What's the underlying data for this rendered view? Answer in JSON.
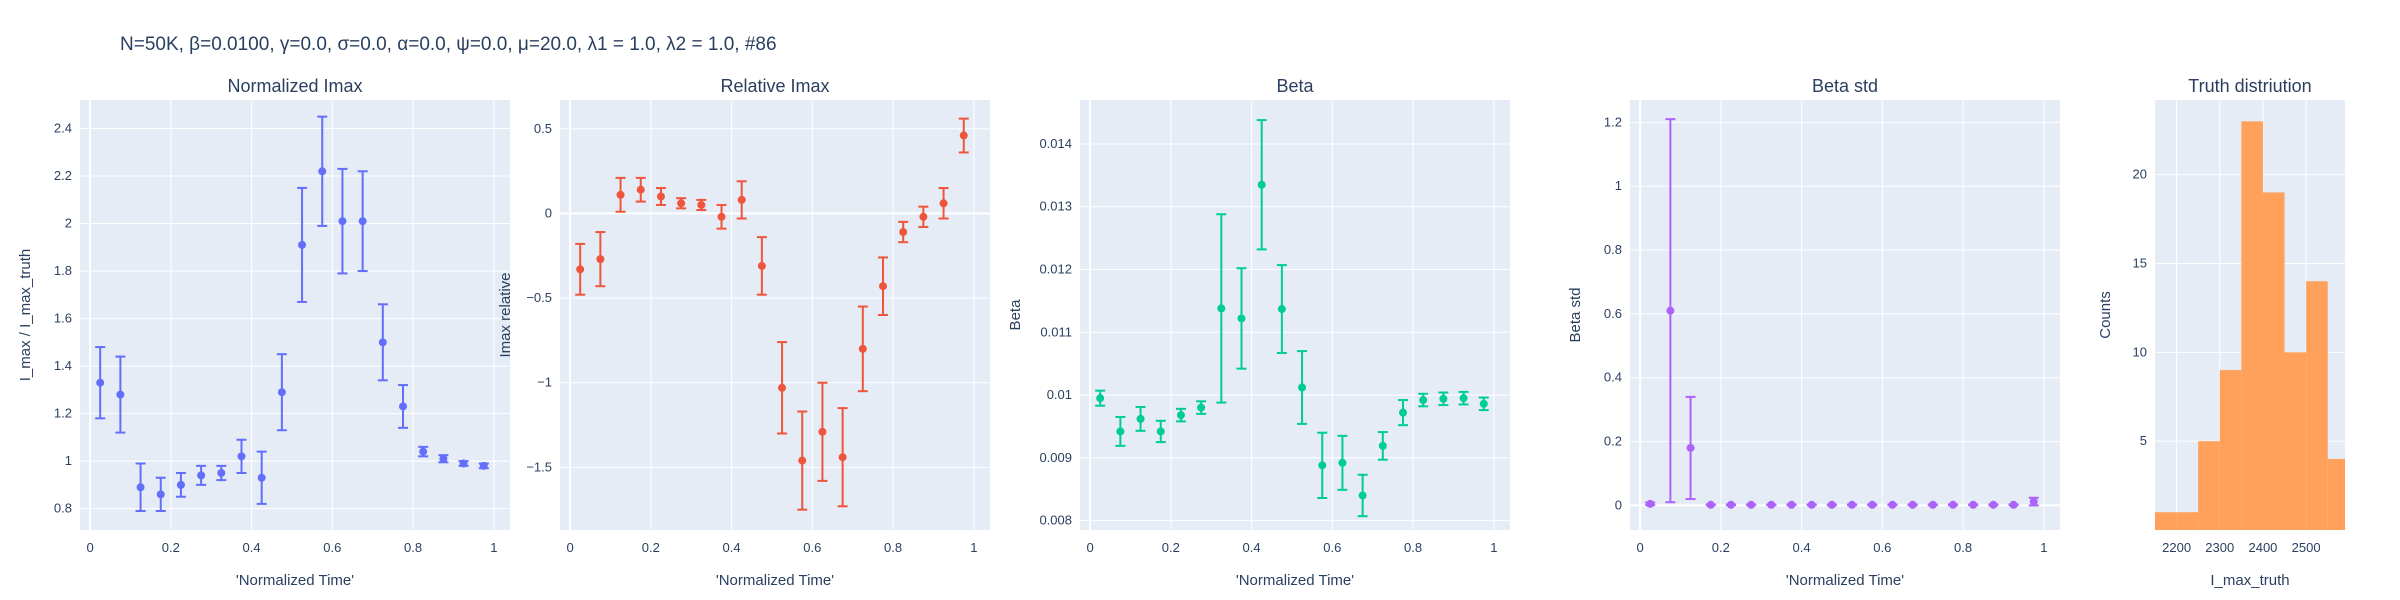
{
  "figure": {
    "suptitle": "N=50K, β=0.0100, γ=0.0, σ=0.0,  α=0.0, ψ=0.0, μ=20.0, λ1 = 1.0, λ2 = 1.0, #86"
  },
  "colors": {
    "plot_bg": "#e5ecf6",
    "grid": "#ffffff",
    "text": "#2a3f5f",
    "series1": "#636efa",
    "series2": "#ef553b",
    "series3": "#00cc96",
    "series4": "#ab63fa",
    "hist": "#ffa15a"
  },
  "chart_data": [
    {
      "type": "scatter",
      "title": "Normalized Imax",
      "xlabel": "'Normalized Time'",
      "ylabel": "I_max / I_max_truth",
      "xlim": [
        -0.025,
        1.04
      ],
      "ylim": [
        0.71,
        2.52
      ],
      "xticks": [
        0,
        0.2,
        0.4,
        0.6,
        0.8,
        1
      ],
      "xtick_labels": [
        "0",
        "0.2",
        "0.4",
        "0.6",
        "0.8",
        "1"
      ],
      "yticks": [
        0.8,
        1,
        1.2,
        1.4,
        1.6,
        1.8,
        2,
        2.2,
        2.4
      ],
      "ytick_labels": [
        "0.8",
        "1",
        "1.2",
        "1.4",
        "1.6",
        "1.8",
        "2",
        "2.2",
        "2.4"
      ],
      "x": [
        0.025,
        0.075,
        0.125,
        0.175,
        0.225,
        0.275,
        0.325,
        0.375,
        0.425,
        0.475,
        0.525,
        0.575,
        0.625,
        0.675,
        0.725,
        0.775,
        0.825,
        0.875,
        0.925,
        0.975
      ],
      "y": [
        1.33,
        1.28,
        0.89,
        0.86,
        0.9,
        0.94,
        0.95,
        1.02,
        0.93,
        1.29,
        1.91,
        2.22,
        2.01,
        2.01,
        1.5,
        1.23,
        1.04,
        1.01,
        0.99,
        0.98
      ],
      "err": [
        0.15,
        0.16,
        0.1,
        0.07,
        0.05,
        0.04,
        0.03,
        0.07,
        0.11,
        0.16,
        0.24,
        0.23,
        0.22,
        0.21,
        0.16,
        0.09,
        0.02,
        0.015,
        0.01,
        0.01
      ],
      "color_key": "series1"
    },
    {
      "type": "scatter",
      "title": "Relative Imax",
      "xlabel": "'Normalized Time'",
      "ylabel": "Imax relative",
      "xlim": [
        -0.025,
        1.04
      ],
      "ylim": [
        -1.87,
        0.67
      ],
      "xticks": [
        0,
        0.2,
        0.4,
        0.6,
        0.8,
        1
      ],
      "xtick_labels": [
        "0",
        "0.2",
        "0.4",
        "0.6",
        "0.8",
        "1"
      ],
      "yticks": [
        -1.5,
        -1,
        -0.5,
        0,
        0.5
      ],
      "ytick_labels": [
        "−1.5",
        "−1",
        "−0.5",
        "0",
        "0.5"
      ],
      "x": [
        0.025,
        0.075,
        0.125,
        0.175,
        0.225,
        0.275,
        0.325,
        0.375,
        0.425,
        0.475,
        0.525,
        0.575,
        0.625,
        0.675,
        0.725,
        0.775,
        0.825,
        0.875,
        0.925,
        0.975
      ],
      "y": [
        -0.33,
        -0.27,
        0.11,
        0.14,
        0.1,
        0.06,
        0.05,
        -0.02,
        0.08,
        -0.31,
        -1.03,
        -1.46,
        -1.29,
        -1.44,
        -0.8,
        -0.43,
        -0.11,
        -0.02,
        0.06,
        0.46
      ],
      "err": [
        0.15,
        0.16,
        0.1,
        0.07,
        0.05,
        0.03,
        0.03,
        0.07,
        0.11,
        0.17,
        0.27,
        0.29,
        0.29,
        0.29,
        0.25,
        0.17,
        0.06,
        0.06,
        0.09,
        0.1
      ],
      "color_key": "series2"
    },
    {
      "type": "scatter",
      "title": "Beta",
      "xlabel": "'Normalized Time'",
      "ylabel": "Beta",
      "xlim": [
        -0.025,
        1.04
      ],
      "ylim": [
        0.00785,
        0.0147
      ],
      "xticks": [
        0,
        0.2,
        0.4,
        0.6,
        0.8,
        1
      ],
      "xtick_labels": [
        "0",
        "0.2",
        "0.4",
        "0.6",
        "0.8",
        "1"
      ],
      "yticks": [
        0.008,
        0.009,
        0.01,
        0.011,
        0.012,
        0.013,
        0.014
      ],
      "ytick_labels": [
        "0.008",
        "0.009",
        "0.01",
        "0.011",
        "0.012",
        "0.013",
        "0.014"
      ],
      "x": [
        0.025,
        0.075,
        0.125,
        0.175,
        0.225,
        0.275,
        0.325,
        0.375,
        0.425,
        0.475,
        0.525,
        0.575,
        0.625,
        0.675,
        0.725,
        0.775,
        0.825,
        0.875,
        0.925,
        0.975
      ],
      "y": [
        0.00995,
        0.00942,
        0.00962,
        0.00942,
        0.00968,
        0.0098,
        0.01138,
        0.01122,
        0.01335,
        0.01137,
        0.01012,
        0.00888,
        0.00892,
        0.0084,
        0.00919,
        0.00972,
        0.00992,
        0.00994,
        0.00995,
        0.00986
      ],
      "err": [
        0.00012,
        0.00023,
        0.00019,
        0.00017,
        0.0001,
        0.0001,
        0.0015,
        0.0008,
        0.00103,
        0.0007,
        0.00058,
        0.00052,
        0.00043,
        0.00033,
        0.00022,
        0.0002,
        0.0001,
        0.0001,
        0.0001,
        0.0001
      ],
      "color_key": "series3"
    },
    {
      "type": "scatter",
      "title": "Beta std",
      "xlabel": "'Normalized Time'",
      "ylabel": "Beta std",
      "xlim": [
        -0.025,
        1.04
      ],
      "ylim": [
        -0.077,
        1.27
      ],
      "xticks": [
        0,
        0.2,
        0.4,
        0.6,
        0.8,
        1
      ],
      "xtick_labels": [
        "0",
        "0.2",
        "0.4",
        "0.6",
        "0.8",
        "1"
      ],
      "yticks": [
        0,
        0.2,
        0.4,
        0.6,
        0.8,
        1,
        1.2
      ],
      "ytick_labels": [
        "0",
        "0.2",
        "0.4",
        "0.6",
        "0.8",
        "1",
        "1.2"
      ],
      "x": [
        0.025,
        0.075,
        0.125,
        0.175,
        0.225,
        0.275,
        0.325,
        0.375,
        0.425,
        0.475,
        0.525,
        0.575,
        0.625,
        0.675,
        0.725,
        0.775,
        0.825,
        0.875,
        0.925,
        0.975
      ],
      "y": [
        0.005,
        0.61,
        0.18,
        0.002,
        0.002,
        0.002,
        0.002,
        0.002,
        0.002,
        0.002,
        0.002,
        0.002,
        0.002,
        0.002,
        0.002,
        0.002,
        0.002,
        0.002,
        0.002,
        0.012
      ],
      "err": [
        0.004,
        0.6,
        0.16,
        0.001,
        0.001,
        0.001,
        0.001,
        0.001,
        0.001,
        0.001,
        0.001,
        0.001,
        0.001,
        0.001,
        0.001,
        0.001,
        0.001,
        0.001,
        0.001,
        0.012
      ],
      "color_key": "series4"
    },
    {
      "type": "histogram",
      "title": "Truth distriution",
      "xlabel": "I_max_truth",
      "ylabel": "Counts",
      "xlim": [
        2150,
        2590
      ],
      "ylim": [
        0,
        24.2
      ],
      "xticks": [
        2200,
        2300,
        2400,
        2500
      ],
      "xtick_labels": [
        "2200",
        "2300",
        "2400",
        "2500"
      ],
      "yticks": [
        5,
        10,
        15,
        20
      ],
      "ytick_labels": [
        "5",
        "10",
        "15",
        "20"
      ],
      "bins": [
        {
          "x0": 2150,
          "x1": 2200,
          "count": 1
        },
        {
          "x0": 2200,
          "x1": 2250,
          "count": 1
        },
        {
          "x0": 2250,
          "x1": 2300,
          "count": 5
        },
        {
          "x0": 2300,
          "x1": 2350,
          "count": 9
        },
        {
          "x0": 2350,
          "x1": 2400,
          "count": 23
        },
        {
          "x0": 2400,
          "x1": 2450,
          "count": 19
        },
        {
          "x0": 2450,
          "x1": 2500,
          "count": 10
        },
        {
          "x0": 2500,
          "x1": 2550,
          "count": 14
        },
        {
          "x0": 2550,
          "x1": 2600,
          "count": 4
        }
      ],
      "color_key": "hist"
    }
  ]
}
